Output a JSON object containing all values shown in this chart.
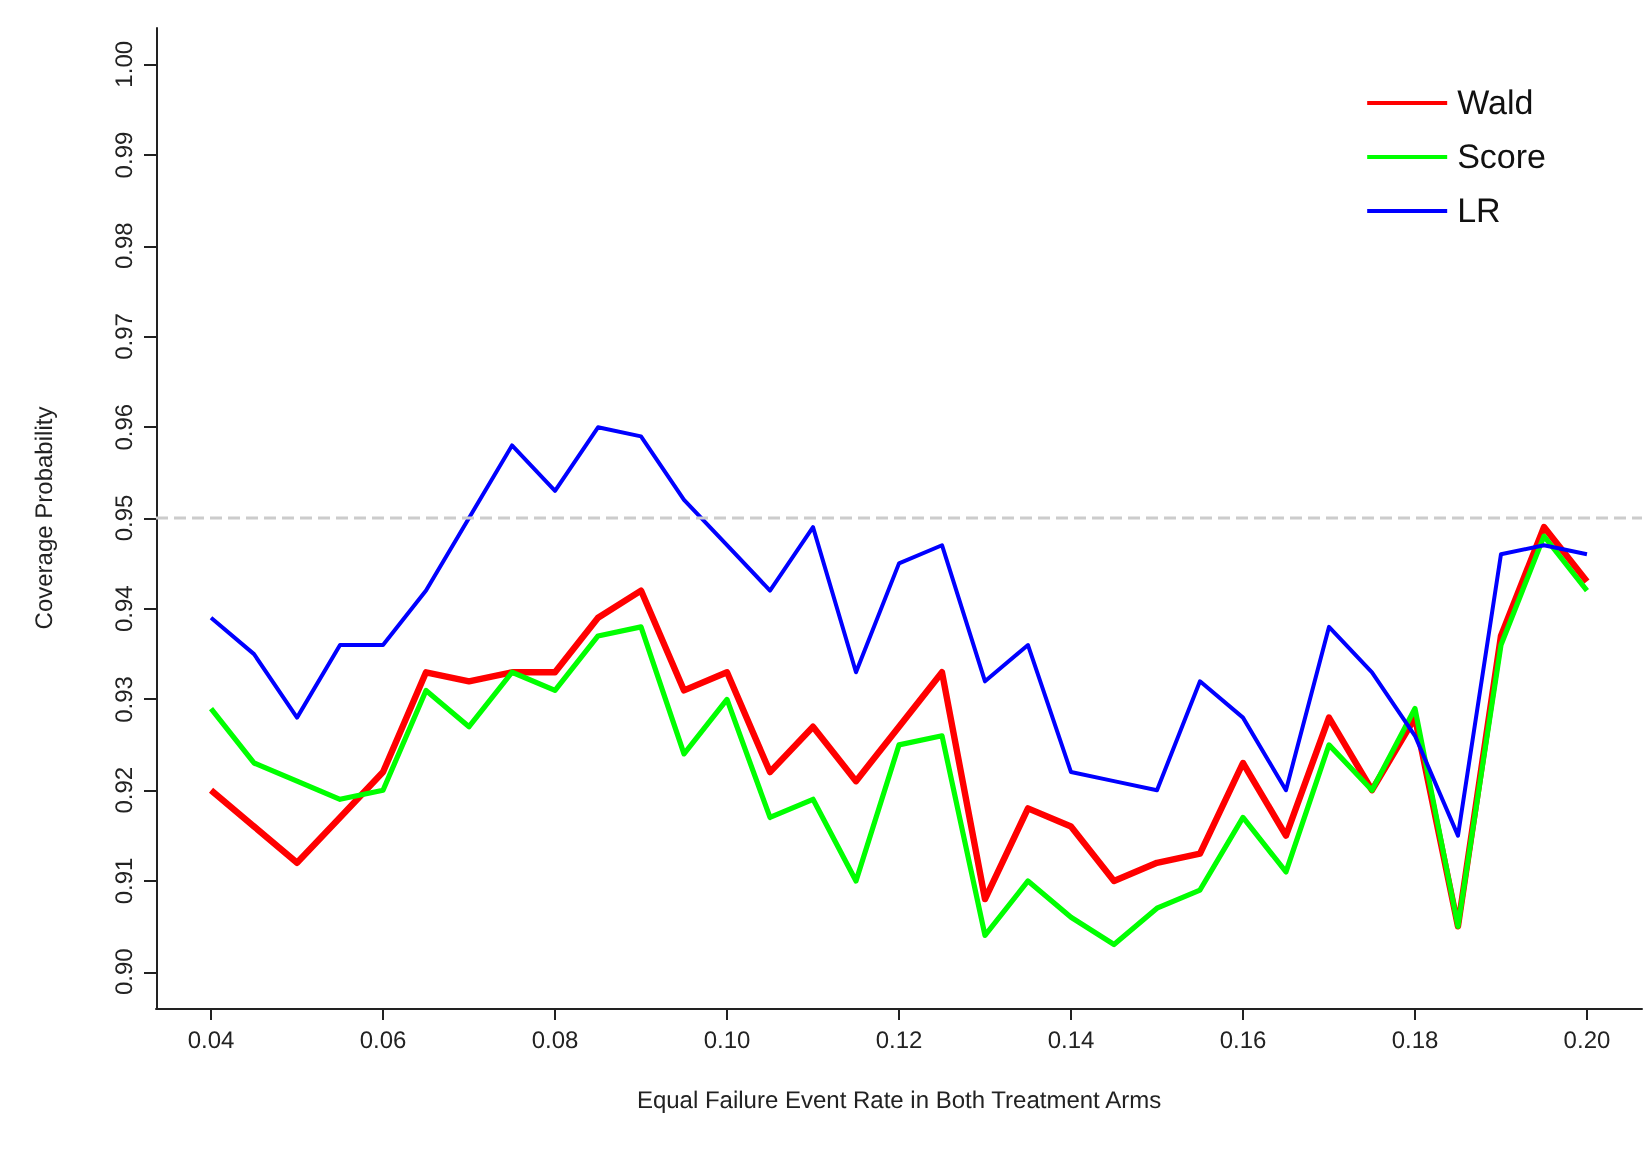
{
  "chart_data": {
    "type": "line",
    "xlabel": "Equal Failure Event Rate in Both Treatment Arms",
    "ylabel": "Coverage Probability",
    "x": [
      0.04,
      0.045,
      0.05,
      0.055,
      0.06,
      0.065,
      0.07,
      0.075,
      0.08,
      0.085,
      0.09,
      0.095,
      0.1,
      0.105,
      0.11,
      0.115,
      0.12,
      0.125,
      0.13,
      0.135,
      0.14,
      0.145,
      0.15,
      0.155,
      0.16,
      0.165,
      0.17,
      0.175,
      0.18,
      0.185,
      0.19,
      0.195,
      0.2
    ],
    "series": [
      {
        "name": "Wald",
        "color": "#ff0000",
        "values": [
          0.92,
          0.916,
          0.912,
          0.917,
          0.922,
          0.933,
          0.932,
          0.933,
          0.933,
          0.939,
          0.942,
          0.931,
          0.933,
          0.922,
          0.927,
          0.921,
          0.927,
          0.933,
          0.908,
          0.918,
          0.916,
          0.91,
          0.912,
          0.913,
          0.923,
          0.915,
          0.928,
          0.92,
          0.928,
          0.905,
          0.937,
          0.949,
          0.943
        ]
      },
      {
        "name": "Score",
        "color": "#00ff00",
        "values": [
          0.929,
          0.923,
          0.921,
          0.919,
          0.92,
          0.931,
          0.927,
          0.933,
          0.931,
          0.937,
          0.938,
          0.924,
          0.93,
          0.917,
          0.919,
          0.91,
          0.925,
          0.926,
          0.904,
          0.91,
          0.906,
          0.903,
          0.907,
          0.909,
          0.917,
          0.911,
          0.925,
          0.92,
          0.929,
          0.905,
          0.936,
          0.948,
          0.942
        ]
      },
      {
        "name": "LR",
        "color": "#0000ff",
        "values": [
          0.939,
          0.935,
          0.928,
          0.936,
          0.936,
          0.942,
          0.95,
          0.958,
          0.953,
          0.96,
          0.959,
          0.952,
          0.947,
          0.942,
          0.949,
          0.933,
          0.945,
          0.947,
          0.932,
          0.936,
          0.922,
          0.921,
          0.92,
          0.932,
          0.928,
          0.92,
          0.938,
          0.933,
          0.926,
          0.915,
          0.946,
          0.947,
          0.946
        ]
      }
    ],
    "xlim": [
      0.0336,
      0.2064
    ],
    "xticks": [
      {
        "value": 0.04,
        "label": "0.04"
      },
      {
        "value": 0.06,
        "label": "0.06"
      },
      {
        "value": 0.08,
        "label": "0.08"
      },
      {
        "value": 0.1,
        "label": "0.10"
      },
      {
        "value": 0.12,
        "label": "0.12"
      },
      {
        "value": 0.14,
        "label": "0.14"
      },
      {
        "value": 0.16,
        "label": "0.16"
      },
      {
        "value": 0.18,
        "label": "0.18"
      },
      {
        "value": 0.2,
        "label": "0.20"
      }
    ],
    "ylim": [
      0.896,
      1.004
    ],
    "yticks": [
      {
        "value": 0.9,
        "label": "0.90"
      },
      {
        "value": 0.91,
        "label": "0.91"
      },
      {
        "value": 0.92,
        "label": "0.92"
      },
      {
        "value": 0.93,
        "label": "0.93"
      },
      {
        "value": 0.94,
        "label": "0.94"
      },
      {
        "value": 0.95,
        "label": "0.95"
      },
      {
        "value": 0.96,
        "label": "0.96"
      },
      {
        "value": 0.97,
        "label": "0.97"
      },
      {
        "value": 0.98,
        "label": "0.98"
      },
      {
        "value": 0.99,
        "label": "0.99"
      },
      {
        "value": 1.0,
        "label": "1.00"
      }
    ],
    "ref_lines": [
      {
        "axis": "y",
        "value": 0.95,
        "color": "#cccccc",
        "line_style": "dashed"
      }
    ],
    "legend": "top right",
    "grid": false,
    "marker": "none",
    "line_style": "solid"
  }
}
